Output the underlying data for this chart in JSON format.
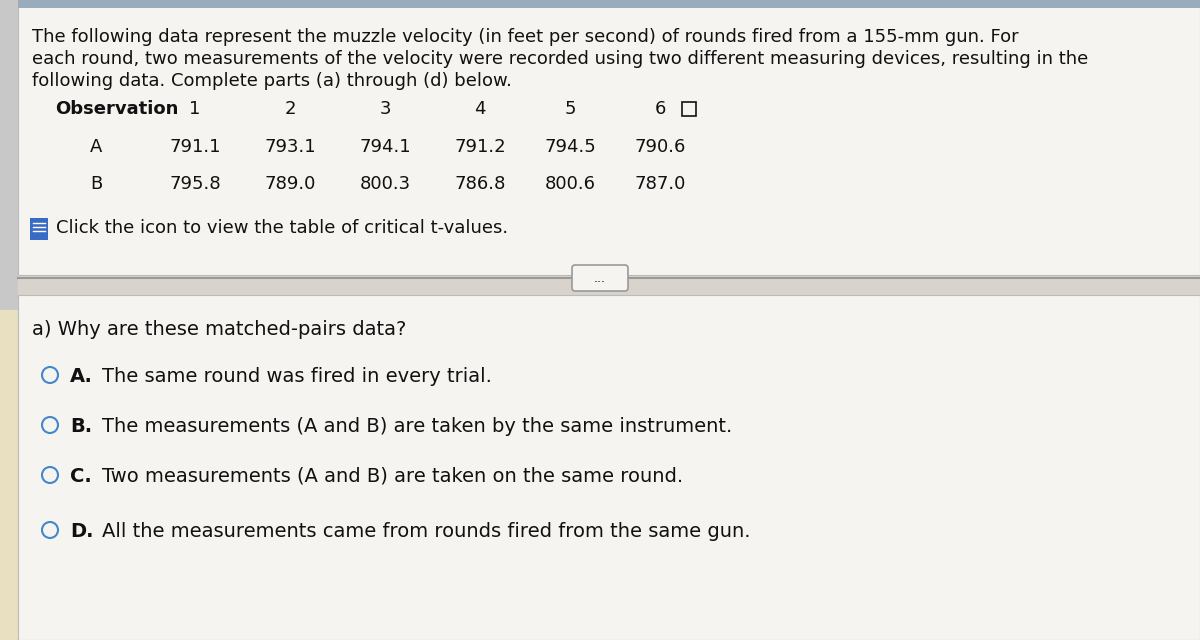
{
  "bg_color": "#d8d4cc",
  "top_panel_bg": "#f5f4f0",
  "bottom_panel_bg": "#f5f4f0",
  "left_accent_color": "#e8e0c0",
  "intro_text_lines": [
    "The following data represent the muzzle velocity (in feet per second) of rounds fired from a 155-mm gun. For",
    "each round, two measurements of the velocity were recorded using two different measuring devices, resulting in the",
    "following data. Complete parts (a) through (d) below."
  ],
  "table_header": [
    "Observation",
    "1",
    "2",
    "3",
    "4",
    "5",
    "6"
  ],
  "row_A_label": "A",
  "row_B_label": "B",
  "row_A_values": [
    "791.1",
    "793.1",
    "794.1",
    "791.2",
    "794.5",
    "790.6"
  ],
  "row_B_values": [
    "795.8",
    "789.0",
    "800.3",
    "786.8",
    "800.6",
    "787.0"
  ],
  "click_text": "Click the icon to view the table of critical t-values.",
  "separator_dots": "...",
  "question_text": "a) Why are these matched-pairs data?",
  "options": [
    {
      "label": "A.",
      "text": "The same round was fired in every trial."
    },
    {
      "label": "B.",
      "text": "The measurements (A and B) are taken by the same instrument."
    },
    {
      "label": "C.",
      "text": "Two measurements (A and B) are taken on the same round."
    },
    {
      "label": "D.",
      "text": "All the measurements came from rounds fired from the same gun."
    }
  ],
  "font_size_intro": 13.0,
  "font_size_table": 13.0,
  "font_size_question": 14.0,
  "font_size_options": 14.0,
  "text_color": "#111111",
  "circle_color": "#4488cc",
  "line_color": "#999999",
  "icon_color": "#3a6bc4",
  "panel_border_color": "#bbbbbb",
  "top_bar_color": "#9aacbc"
}
